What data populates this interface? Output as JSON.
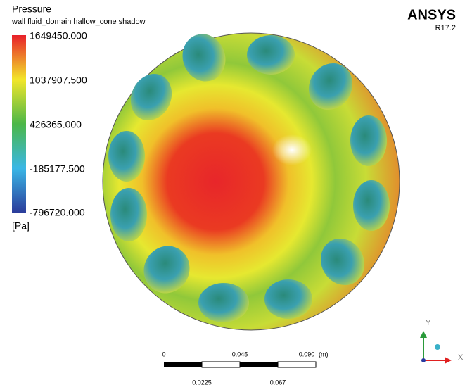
{
  "header": {
    "title": "Pressure",
    "subtitle": "wall fluid_domain hallow_cone shadow"
  },
  "legend": {
    "labels": [
      "1649450.000",
      "1037907.500",
      "426365.000",
      "-185177.500",
      "-796720.000"
    ],
    "unit": "[Pa]"
  },
  "brand": {
    "name": "ANSYS",
    "version": "R17.2"
  },
  "scale_bar": {
    "top_labels": [
      "0",
      "0.045",
      "0.090"
    ],
    "unit": "(m)",
    "bottom_labels": [
      "0.0225",
      "0.067"
    ]
  },
  "axes": {
    "y": "Y",
    "x": "X"
  }
}
